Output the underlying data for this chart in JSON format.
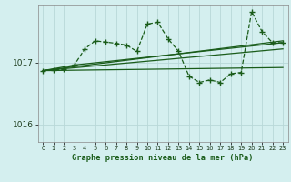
{
  "title": "Graphe pression niveau de la mer (hPa)",
  "background_color": "#d4efef",
  "grid_color": "#b8d8d8",
  "line_color": "#1a5c1a",
  "xlim": [
    -0.5,
    23.5
  ],
  "ylim": [
    1015.72,
    1017.92
  ],
  "yticks": [
    1016,
    1017
  ],
  "xticks": [
    0,
    1,
    2,
    3,
    4,
    5,
    6,
    7,
    8,
    9,
    10,
    11,
    12,
    13,
    14,
    15,
    16,
    17,
    18,
    19,
    20,
    21,
    22,
    23
  ],
  "main_x": [
    0,
    1,
    2,
    3,
    4,
    5,
    6,
    7,
    8,
    9,
    10,
    11,
    12,
    13,
    14,
    15,
    16,
    17,
    18,
    19,
    20,
    21,
    22,
    23
  ],
  "main_y": [
    1016.87,
    1016.88,
    1016.9,
    1016.96,
    1017.22,
    1017.35,
    1017.33,
    1017.31,
    1017.28,
    1017.18,
    1017.62,
    1017.65,
    1017.38,
    1017.18,
    1016.78,
    1016.68,
    1016.72,
    1016.68,
    1016.82,
    1016.84,
    1017.82,
    1017.5,
    1017.32,
    1017.32
  ],
  "trend_lines": [
    {
      "x": [
        0,
        3,
        23
      ],
      "y": [
        1016.87,
        1016.96,
        1017.32
      ]
    },
    {
      "x": [
        0,
        23
      ],
      "y": [
        1016.87,
        1017.35
      ]
    },
    {
      "x": [
        0,
        23
      ],
      "y": [
        1016.87,
        1017.22
      ]
    },
    {
      "x": [
        0,
        23
      ],
      "y": [
        1016.87,
        1016.92
      ]
    }
  ]
}
